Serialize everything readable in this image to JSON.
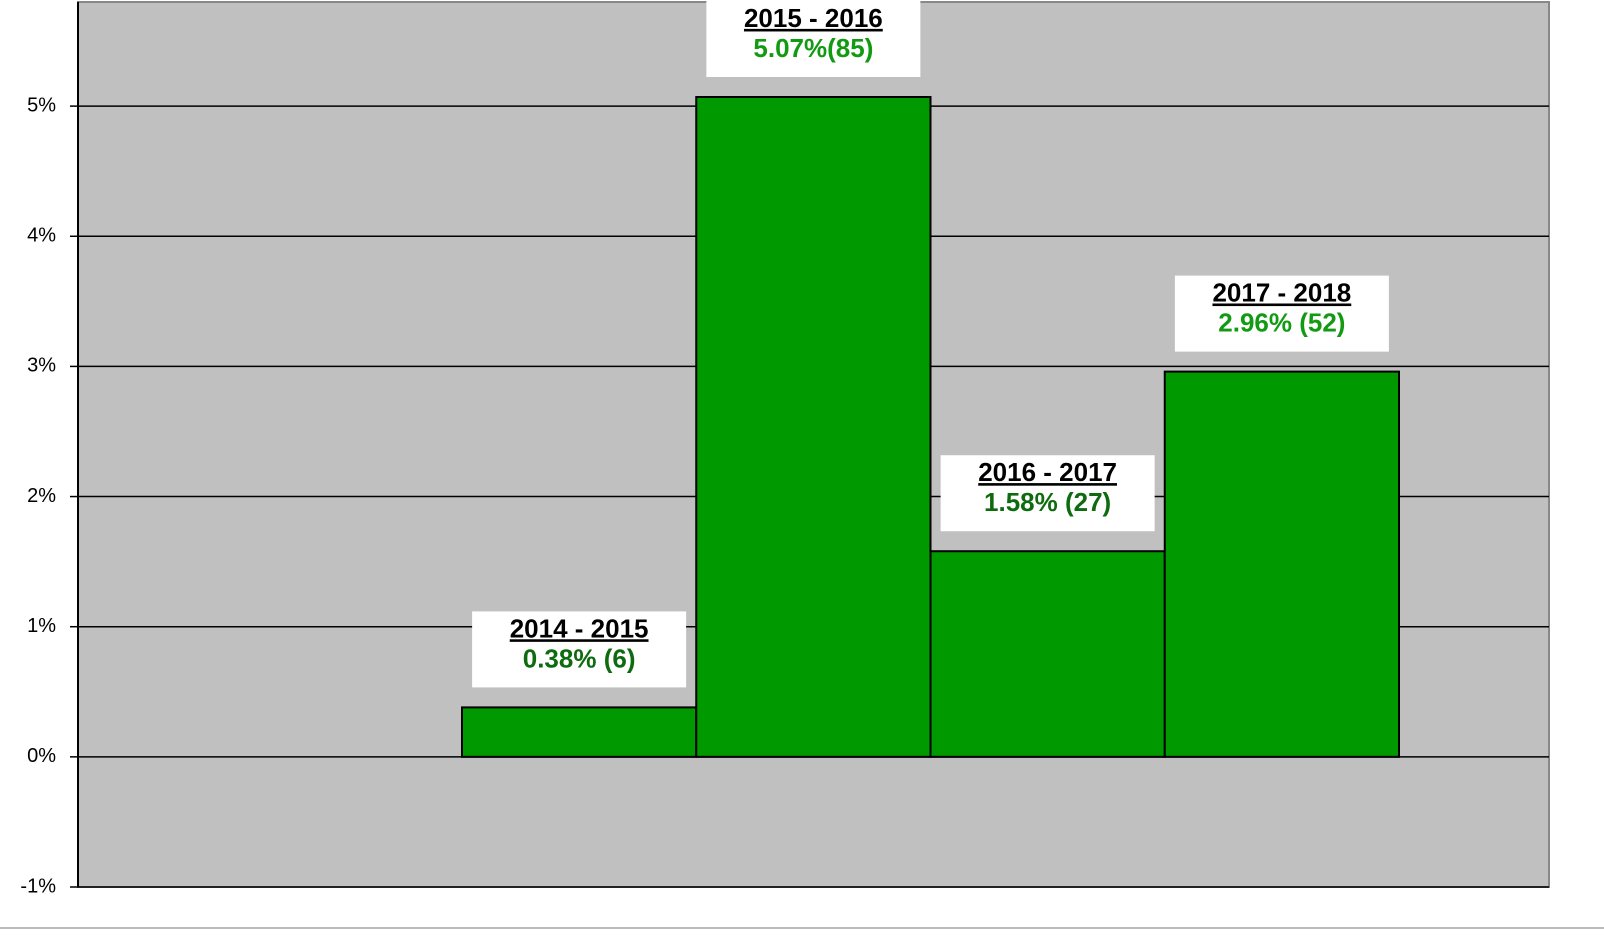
{
  "chart_data": {
    "type": "bar",
    "categories": [
      "2014 - 2015",
      "2015 - 2016",
      "2016 - 2017",
      "2017 - 2018"
    ],
    "values": [
      0.38,
      5.07,
      1.58,
      2.96
    ],
    "value_labels": [
      "0.38% (6)",
      "5.07%(85)",
      "1.58% (27)",
      "2.96% (52)"
    ],
    "value_label_colors": [
      "#0f6b0f",
      "#129a12",
      "#0f6b0f",
      "#129a12"
    ],
    "color": "#009900",
    "background": "#c0c0c0",
    "ylim": [
      -1,
      5.8
    ],
    "yticks": [
      {
        "value": -1,
        "label": "-1%"
      },
      {
        "value": 0,
        "label": "0%"
      },
      {
        "value": 1,
        "label": "1%"
      },
      {
        "value": 2,
        "label": "2%"
      },
      {
        "value": 3,
        "label": "3%"
      },
      {
        "value": 4,
        "label": "4%"
      },
      {
        "value": 5,
        "label": "5%"
      }
    ],
    "grid": true
  }
}
